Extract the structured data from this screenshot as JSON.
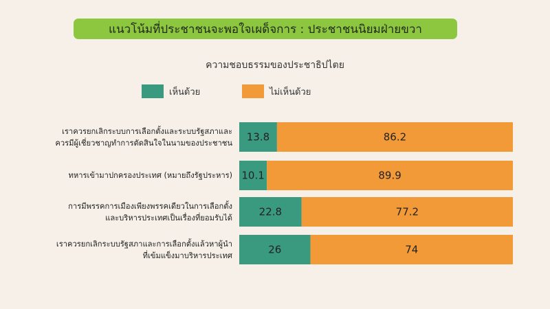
{
  "header": {
    "banner_title": "แนวโน้มที่ประชาชนจะพอใจเผด็จการ : ประชาชนนิยมฝ่ายขวา"
  },
  "colors": {
    "banner": "#8dc63f",
    "agree": "#3a9a80",
    "disagree": "#f39a38",
    "background": "#f6f0e9"
  },
  "chart_data": {
    "type": "bar",
    "orientation": "horizontal",
    "stacked": true,
    "title": "ความชอบธรรมของประชาธิปไตย",
    "xlim": [
      0,
      100
    ],
    "grid": false,
    "legend_position": "top",
    "categories": [
      [
        "เราควรยกเลิกระบบการเลือกตั้งและระบบรัฐสภาและ",
        "ควรมีผู้เชี่ยวชาญทำการตัดสินใจในนามของประชาชน"
      ],
      [
        "ทหารเข้ามาปกครองประเทศ (หมายถึงรัฐประหาร)"
      ],
      [
        "การมีพรรคการเมืองเพียงพรรคเดียวในการเลือกตั้ง",
        "และบริหารประเทศเป็นเรื่องที่ยอมรับได้"
      ],
      [
        "เราควรยกเลิกระบบรัฐสภาและการเลือกตั้งแล้วหาผู้นำ",
        "ที่เข้มแข็งมาบริหารประเทศ"
      ]
    ],
    "series": [
      {
        "name": "เห็นด้วย",
        "values": [
          13.8,
          10.1,
          22.8,
          26
        ]
      },
      {
        "name": "ไม่เห็นด้วย",
        "values": [
          86.2,
          89.9,
          77.2,
          74
        ]
      }
    ]
  }
}
